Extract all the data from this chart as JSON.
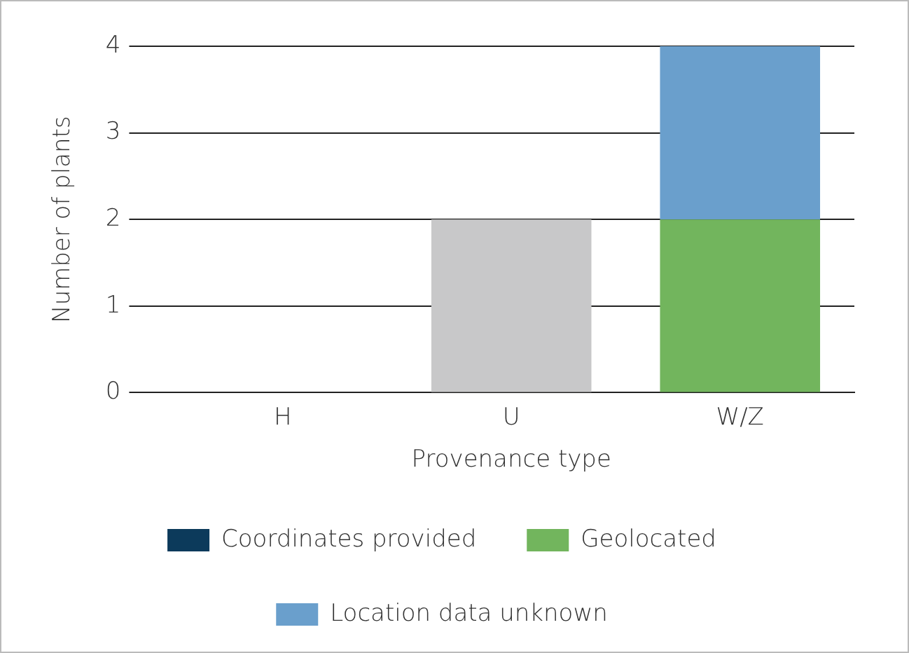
{
  "chart_data": {
    "type": "bar",
    "stacked": true,
    "xlabel": "Provenance type",
    "ylabel": "Number of plants",
    "categories": [
      "H",
      "U",
      "W/Z"
    ],
    "series": [
      {
        "name": "Coordinates provided",
        "color": "#0c3a5b",
        "values": [
          0,
          0,
          0
        ]
      },
      {
        "name": "Geolocated",
        "color": "#72b55d",
        "values": [
          0,
          0,
          2
        ]
      },
      {
        "name": "Location data unknown",
        "color": "#6a9fcc",
        "values": [
          0,
          0,
          2
        ]
      },
      {
        "color": "#c8c8c9",
        "values": [
          0,
          2,
          0
        ]
      }
    ],
    "ylim": [
      0,
      4
    ],
    "yticks": [
      0,
      1,
      2,
      3,
      4
    ],
    "grid": "y",
    "legend": "bottom"
  }
}
